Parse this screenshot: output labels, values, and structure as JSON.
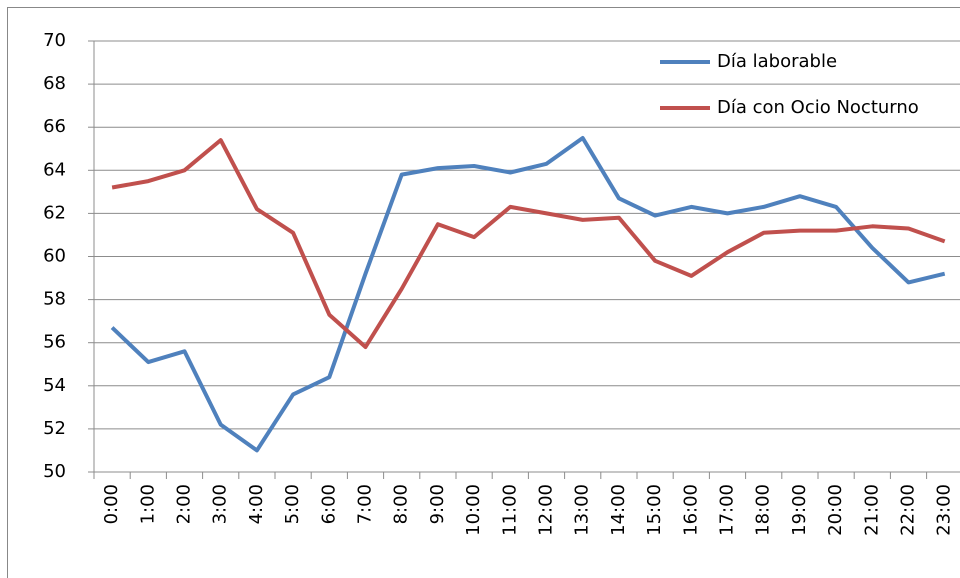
{
  "chart_data": {
    "type": "line",
    "categories": [
      "0:00",
      "1:00",
      "2:00",
      "3:00",
      "4:00",
      "5:00",
      "6:00",
      "7:00",
      "8:00",
      "9:00",
      "10:00",
      "11:00",
      "12:00",
      "13:00",
      "14:00",
      "15:00",
      "16:00",
      "17:00",
      "18:00",
      "19:00",
      "20:00",
      "21:00",
      "22:00",
      "23:00"
    ],
    "series": [
      {
        "name": "Día laborable",
        "color": "#4f81bd",
        "values": [
          56.7,
          55.1,
          55.6,
          52.2,
          51.0,
          53.6,
          54.4,
          59.2,
          63.8,
          64.1,
          64.2,
          63.9,
          64.3,
          65.5,
          62.7,
          61.9,
          62.3,
          62.0,
          62.3,
          62.8,
          62.3,
          60.4,
          58.8,
          59.2
        ]
      },
      {
        "name": "Día con Ocio Nocturno",
        "color": "#c0504d",
        "values": [
          63.2,
          63.5,
          64.0,
          65.4,
          62.2,
          61.1,
          57.3,
          55.8,
          58.5,
          61.5,
          60.9,
          62.3,
          62.0,
          61.7,
          61.8,
          59.8,
          59.1,
          60.2,
          61.1,
          61.2,
          61.2,
          61.4,
          61.3,
          60.7
        ]
      }
    ],
    "ylim": [
      50,
      70
    ],
    "yticks": [
      50,
      52,
      54,
      56,
      58,
      60,
      62,
      64,
      66,
      68,
      70
    ],
    "grid": true
  }
}
